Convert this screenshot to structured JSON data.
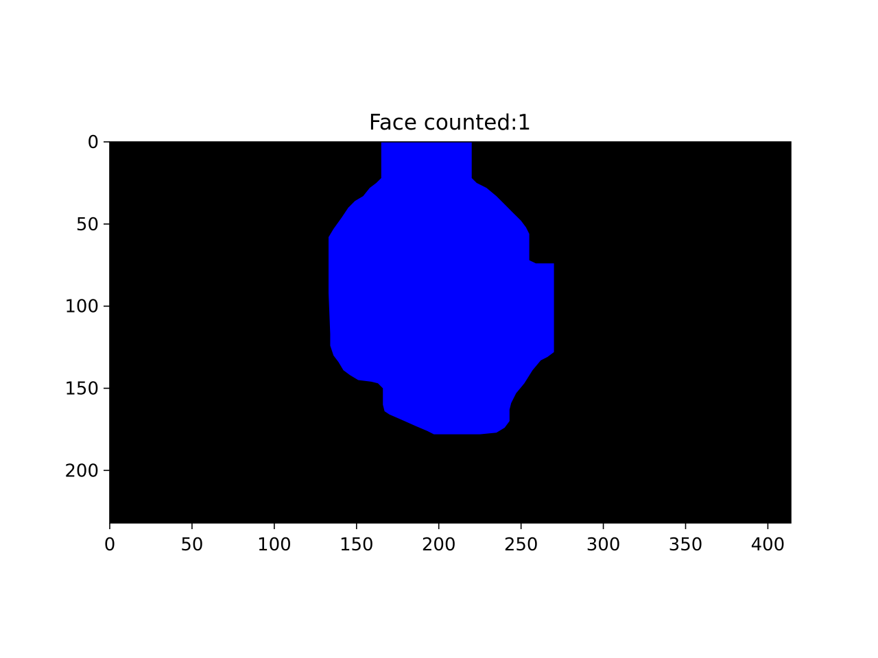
{
  "chart_data": {
    "type": "heatmap",
    "title": "Face counted:1",
    "xlabel": "",
    "ylabel": "",
    "xlim": [
      0,
      414
    ],
    "ylim": [
      232,
      0
    ],
    "y_inverted": true,
    "grid": false,
    "legend": "none",
    "x_ticks": [
      0,
      50,
      100,
      150,
      200,
      250,
      300,
      350,
      400
    ],
    "y_ticks": [
      0,
      50,
      100,
      150,
      200
    ],
    "colors": {
      "background": "#000000",
      "mask": "#0000ff"
    },
    "series": [
      {
        "kind": "mask-region",
        "color": "#0000ff",
        "outline": [
          [
            165,
            0
          ],
          [
            220,
            0
          ],
          [
            220,
            22
          ],
          [
            223,
            25
          ],
          [
            229,
            28
          ],
          [
            235,
            33
          ],
          [
            240,
            38
          ],
          [
            245,
            43
          ],
          [
            250,
            48
          ],
          [
            253,
            52
          ],
          [
            255,
            56
          ],
          [
            255,
            72
          ],
          [
            259,
            74
          ],
          [
            270,
            74
          ],
          [
            270,
            128
          ],
          [
            266,
            131
          ],
          [
            262,
            133
          ],
          [
            257,
            139
          ],
          [
            252,
            147
          ],
          [
            247,
            153
          ],
          [
            244,
            159
          ],
          [
            243,
            163
          ],
          [
            243,
            170
          ],
          [
            240,
            174
          ],
          [
            235,
            177
          ],
          [
            225,
            178
          ],
          [
            197,
            178
          ],
          [
            193,
            176
          ],
          [
            186,
            173
          ],
          [
            177,
            169
          ],
          [
            170,
            166
          ],
          [
            167,
            164
          ],
          [
            166,
            160
          ],
          [
            166,
            150
          ],
          [
            163,
            147
          ],
          [
            159,
            146
          ],
          [
            151,
            145
          ],
          [
            146,
            142
          ],
          [
            142,
            139
          ],
          [
            139,
            134
          ],
          [
            136,
            130
          ],
          [
            134,
            124
          ],
          [
            134,
            117
          ],
          [
            133,
            92
          ],
          [
            133,
            58
          ],
          [
            136,
            53
          ],
          [
            141,
            46
          ],
          [
            145,
            40
          ],
          [
            149,
            36
          ],
          [
            154,
            33
          ],
          [
            158,
            28
          ],
          [
            162,
            25
          ],
          [
            165,
            22
          ]
        ]
      }
    ]
  }
}
